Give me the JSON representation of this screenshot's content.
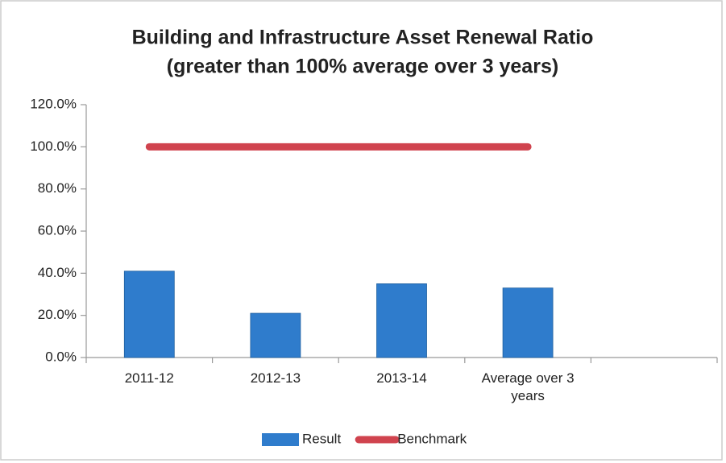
{
  "chart_data": {
    "type": "bar",
    "title": "Building and Infrastructure Asset Renewal Ratio",
    "subtitle": "(greater than 100% average over 3 years)",
    "categories": [
      "2011-12",
      "2012-13",
      "2013-14",
      "Average over 3 years",
      null
    ],
    "series": [
      {
        "name": "Result",
        "type": "bar",
        "color": "#2f7ccc",
        "values": [
          41,
          21,
          35,
          33,
          null
        ]
      },
      {
        "name": "Benchmark",
        "type": "line",
        "color": "#d0434e",
        "values": [
          100,
          100,
          100,
          100,
          null
        ]
      }
    ],
    "ylim": [
      0,
      120
    ],
    "yticks": [
      {
        "value": 0,
        "label": "0.0%"
      },
      {
        "value": 20,
        "label": "20.0%"
      },
      {
        "value": 40,
        "label": "40.0%"
      },
      {
        "value": 60,
        "label": "60.0%"
      },
      {
        "value": 80,
        "label": "80.0%"
      },
      {
        "value": 100,
        "label": "100.0%"
      },
      {
        "value": 120,
        "label": "120.0%"
      }
    ],
    "grid": false,
    "legend": "bottom"
  }
}
